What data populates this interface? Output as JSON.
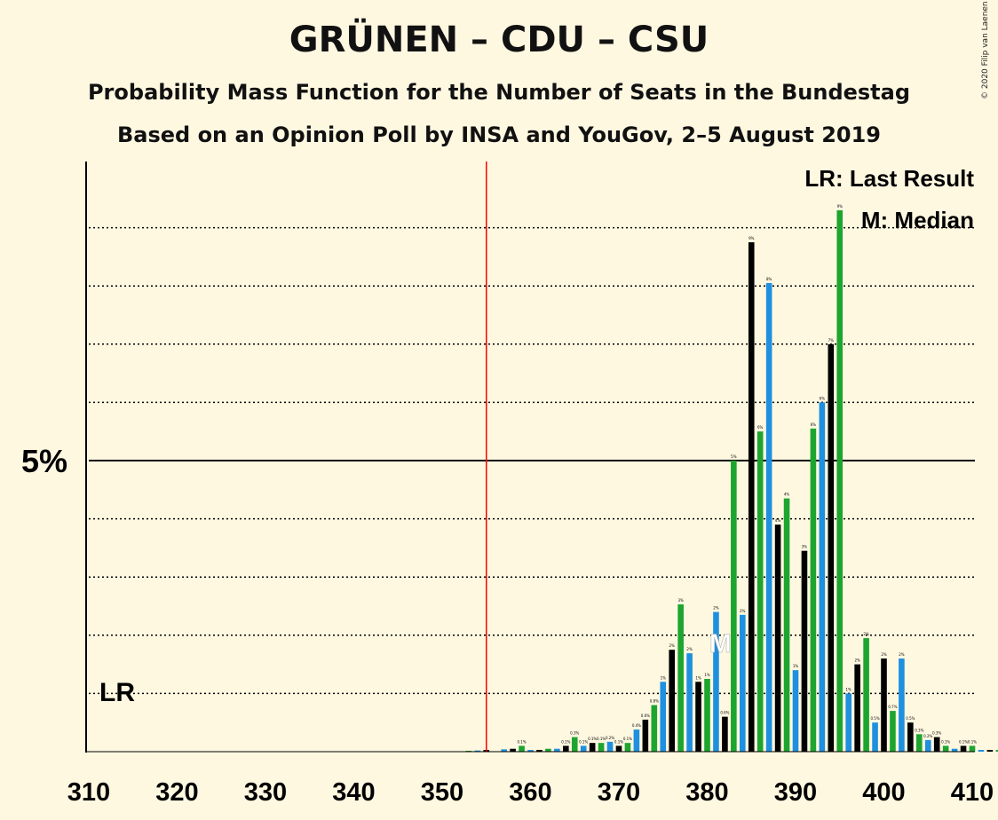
{
  "title": "GRÜNEN – CDU – CSU",
  "subtitle1": "Probability Mass Function for the Number of Seats in the Bundestag",
  "subtitle2": "Based on an Opinion Poll by INSA and YouGov, 2–5 August 2019",
  "copyright": "© 2020 Filip van Laenen",
  "legend": {
    "last_result": "LR: Last Result",
    "median": "M: Median"
  },
  "colors": {
    "background": "#FFF8E1",
    "black": "#000000",
    "green": "#1DA52F",
    "blue": "#1E90DF",
    "last_result_line": "#FF0000"
  },
  "chart_data": {
    "type": "bar",
    "x_start": 310,
    "x_end": 410,
    "x_ticks": [
      "310",
      "320",
      "330",
      "340",
      "350",
      "360",
      "370",
      "380",
      "390",
      "400",
      "410"
    ],
    "y_label_5pct": "5%",
    "ylim": [
      0,
      10
    ],
    "gridlines_pct": [
      1,
      2,
      3,
      4,
      5,
      6,
      7,
      8,
      9
    ],
    "last_result_seat": 355,
    "last_result_label": "LR",
    "median_seat": 382,
    "median_label": "M",
    "color_cycle": [
      "black",
      "green",
      "blue"
    ],
    "values": [
      0,
      0,
      0,
      0,
      0,
      0,
      0,
      0,
      0,
      0,
      0,
      0,
      0,
      0,
      0,
      0,
      0,
      0,
      0,
      0,
      0,
      0,
      0,
      0,
      0,
      0,
      0,
      0,
      0,
      0,
      0,
      0,
      0,
      0,
      0,
      0,
      0,
      0,
      0,
      0,
      0,
      0,
      0,
      0.01,
      0.02,
      0.03,
      0,
      0.04,
      0.05,
      0.1,
      0.03,
      0.03,
      0.05,
      0.05,
      0.1,
      0.25,
      0.1,
      0.15,
      0.15,
      0.17,
      0.1,
      0.15,
      0.38,
      0.55,
      0.8,
      1.2,
      1.75,
      2.53,
      1.69,
      1.2,
      1.25,
      2.4,
      0.6,
      5.0,
      2.35,
      8.75,
      5.5,
      8.05,
      3.9,
      4.35,
      1.4,
      3.45,
      5.55,
      6.0,
      7.0,
      9.3,
      1.0,
      1.5,
      1.95,
      0.5,
      1.6,
      0.7,
      1.6,
      0.5,
      0.3,
      0.2,
      0.25,
      0.1,
      0.05,
      0.1,
      0.1,
      0.03,
      0.03,
      0.03
    ]
  }
}
